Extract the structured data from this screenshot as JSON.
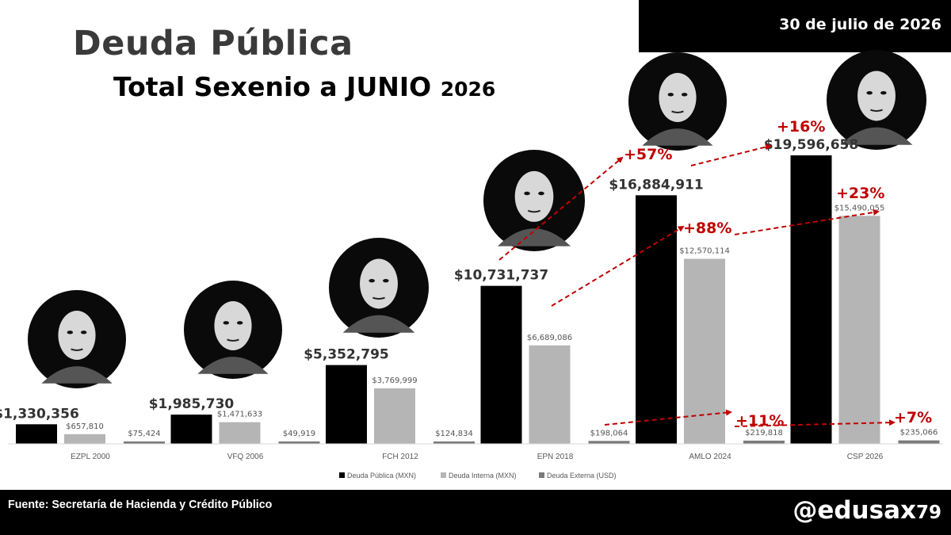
{
  "header": {
    "date": "30 de julio de 2026",
    "title": "Deuda Pública",
    "subtitle_main": "Total Sexenio a JUNIO",
    "subtitle_year": "2026"
  },
  "footer": {
    "source": "Fuente: Secretaría de Hacienda y Crédito Público",
    "handle_main": "@edusax",
    "handle_num": "79"
  },
  "colors": {
    "deuda_publica": "#000000",
    "deuda_interna": "#b5b5b5",
    "deuda_externa": "#7a7a7a",
    "annotation": "#c00000"
  },
  "chart_data": {
    "type": "bar",
    "categories": [
      "EZPL 2000",
      "VFQ 2006",
      "FCH 2012",
      "EPN 2018",
      "AMLO 2024",
      "CSP 2026"
    ],
    "series": [
      {
        "name": "Deuda Pública (MXN)",
        "values": [
          1330356,
          1985730,
          5352795,
          10731737,
          16884911,
          19596658
        ],
        "labels": [
          "$1,330,356",
          "$1,985,730",
          "$5,352,795",
          "$10,731,737",
          "$16,884,911",
          "$19,596,658"
        ]
      },
      {
        "name": "Deuda Interna (MXN)",
        "values": [
          657810,
          1471633,
          3769999,
          6689086,
          12570114,
          15490055
        ],
        "labels": [
          "$657,810",
          "$1,471,633",
          "$3,769,999",
          "$6,689,086",
          "$12,570,114",
          "$15,490,055"
        ]
      },
      {
        "name": "Deuda Externa (USD)",
        "values": [
          75424,
          49919,
          124834,
          198064,
          219818,
          235066
        ],
        "labels": [
          "$75,424",
          "$49,919",
          "$124,834",
          "$198,064",
          "$219,818",
          "$235,066"
        ]
      }
    ],
    "ylim": [
      0,
      21000000
    ],
    "grid": false,
    "legend": "bottom",
    "annotations": [
      {
        "text": "+57%",
        "from": {
          "series": 0,
          "category": 3
        },
        "to": {
          "series": 0,
          "category": 4
        }
      },
      {
        "text": "+16%",
        "from": {
          "series": 0,
          "category": 4
        },
        "to": {
          "series": 0,
          "category": 5
        }
      },
      {
        "text": "+88%",
        "from": {
          "series": 1,
          "category": 3
        },
        "to": {
          "series": 1,
          "category": 4
        }
      },
      {
        "text": "+23%",
        "from": {
          "series": 1,
          "category": 4
        },
        "to": {
          "series": 1,
          "category": 5
        }
      },
      {
        "text": "+11%",
        "from": {
          "series": 2,
          "category": 3
        },
        "to": {
          "series": 2,
          "category": 4
        }
      },
      {
        "text": "+7%",
        "from": {
          "series": 2,
          "category": 4
        },
        "to": {
          "series": 2,
          "category": 5
        }
      }
    ],
    "portraits": [
      "EZPL 2000",
      "VFQ 2006",
      "FCH 2012",
      "EPN 2018",
      "AMLO 2024",
      "CSP 2026"
    ]
  }
}
